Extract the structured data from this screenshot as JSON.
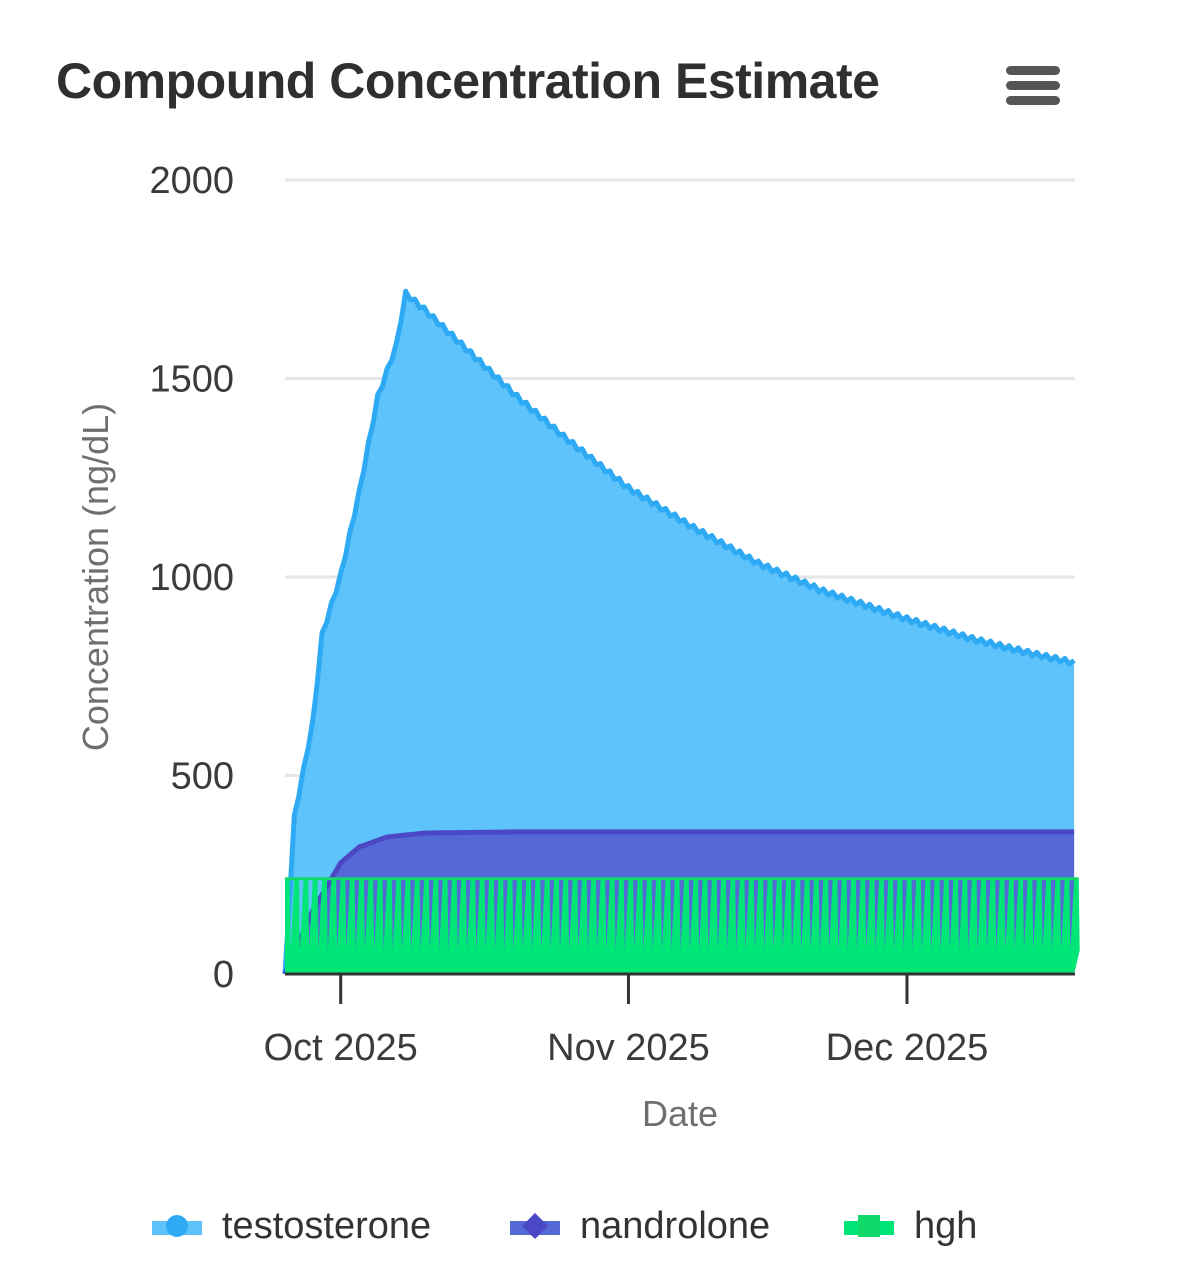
{
  "title": "Compound Concentration Estimate",
  "menu_icon": "hamburger-menu-icon",
  "chart_data": {
    "type": "area",
    "title": "Compound Concentration Estimate",
    "xlabel": "Date",
    "ylabel": "Concentration (ng/dL)",
    "ylim": [
      0,
      2000
    ],
    "yticks": [
      "0",
      "500",
      "1000",
      "1500",
      "2000"
    ],
    "xlim": [
      "2025-09-25",
      "2025-12-19"
    ],
    "xticks": [
      {
        "date": "2025-10-01",
        "label": "Oct 2025"
      },
      {
        "date": "2025-11-01",
        "label": "Nov 2025"
      },
      {
        "date": "2025-12-01",
        "label": "Dec 2025"
      }
    ],
    "grid": "horizontal",
    "legend_position": "bottom",
    "series": [
      {
        "name": "testosterone",
        "color": "#2eaaf5",
        "fill": "#5ec3fb",
        "marker": "circle",
        "points": [
          [
            "2025-09-25",
            0
          ],
          [
            "2025-09-26",
            400
          ],
          [
            "2025-09-28",
            640
          ],
          [
            "2025-09-29",
            860
          ],
          [
            "2025-10-01",
            1010
          ],
          [
            "2025-10-03",
            1220
          ],
          [
            "2025-10-05",
            1460
          ],
          [
            "2025-10-07",
            1590
          ],
          [
            "2025-10-08",
            1720
          ],
          [
            "2025-10-10",
            1680
          ],
          [
            "2025-10-15",
            1570
          ],
          [
            "2025-10-20",
            1460
          ],
          [
            "2025-10-25",
            1360
          ],
          [
            "2025-11-01",
            1230
          ],
          [
            "2025-11-08",
            1130
          ],
          [
            "2025-11-15",
            1040
          ],
          [
            "2025-11-22",
            970
          ],
          [
            "2025-12-01",
            900
          ],
          [
            "2025-12-08",
            850
          ],
          [
            "2025-12-15",
            810
          ],
          [
            "2025-12-19",
            790
          ]
        ]
      },
      {
        "name": "nandrolone",
        "color": "#4b48c6",
        "fill": "#5569d6",
        "marker": "diamond",
        "points": [
          [
            "2025-09-25",
            0
          ],
          [
            "2025-09-28",
            160
          ],
          [
            "2025-10-01",
            280
          ],
          [
            "2025-10-03",
            320
          ],
          [
            "2025-10-06",
            345
          ],
          [
            "2025-10-10",
            355
          ],
          [
            "2025-10-20",
            358
          ],
          [
            "2025-12-19",
            358
          ]
        ]
      },
      {
        "name": "hgh",
        "color": "#10d96a",
        "fill": "#00e676",
        "marker": "square",
        "peak": 240,
        "trough": 0,
        "start": "2025-09-25",
        "end": "2025-12-19",
        "interval_days": 1
      }
    ]
  }
}
